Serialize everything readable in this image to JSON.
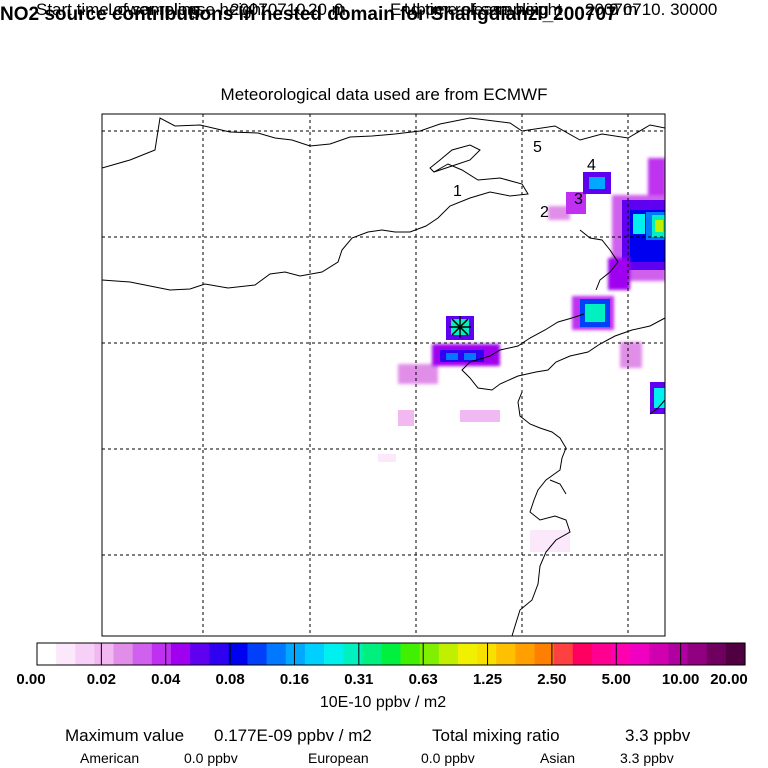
{
  "header": {
    "title": "NO2 source contributions in nested domain for Shangdianzi_200707",
    "start_label": "Start time of sampling",
    "start_value": "20070710.     0",
    "end_label": "End time of sampling",
    "end_value": "20070710. 30000",
    "lower_label": "Lower release height",
    "lower_value": "20 m",
    "upper_label": "Upper release height",
    "upper_value": "0 m",
    "met_text": "Meteorological data used are from ECMWF"
  },
  "chart_data": {
    "type": "heatmap",
    "title": "NO2 source contributions in nested domain for Shangdianzi_200707",
    "xlabel": "",
    "ylabel": "",
    "grid": true,
    "map_labels": [
      "1",
      "2",
      "3",
      "4",
      "5"
    ],
    "colorbar": {
      "unit_label": "10E-10 ppbv / m2",
      "tick_labels": [
        "0.00",
        "0.02",
        "0.04",
        "0.08",
        "0.16",
        "0.31",
        "0.63",
        "1.25",
        "2.50",
        "5.00",
        "10.00",
        "20.00"
      ],
      "tick_values": [
        0.0,
        0.02,
        0.04,
        0.08,
        0.16,
        0.31,
        0.63,
        1.25,
        2.5,
        5.0,
        10.0,
        20.0
      ],
      "colors": [
        "#ffffff",
        "#fbe8fb",
        "#f6d0f6",
        "#f1b8f1",
        "#e08ee8",
        "#d060ee",
        "#bf30f0",
        "#a000f0",
        "#6000f0",
        "#3000f0",
        "#0000f0",
        "#0040f8",
        "#0078ff",
        "#00a8ff",
        "#00d0ff",
        "#00f0f0",
        "#00f0c0",
        "#00f080",
        "#00f040",
        "#40f000",
        "#80f000",
        "#c0f000",
        "#f0f000",
        "#f8e000",
        "#ffc000",
        "#ffa000",
        "#ff8000",
        "#ff4040",
        "#ff0060",
        "#ff0090",
        "#ff00b0",
        "#f000c0",
        "#d000b0",
        "#b000a0",
        "#900080",
        "#700060",
        "#500040"
      ]
    }
  },
  "footer": {
    "max_label": "Maximum value",
    "max_value": "0.177E-09 ppbv / m2",
    "total_label": "Total mixing ratio",
    "total_value": "3.3 ppbv",
    "american_label": "American",
    "american_value": "0.0 ppbv",
    "european_label": "European",
    "european_value": "0.0 ppbv",
    "asian_label": "Asian",
    "asian_value": "3.3 ppbv"
  }
}
